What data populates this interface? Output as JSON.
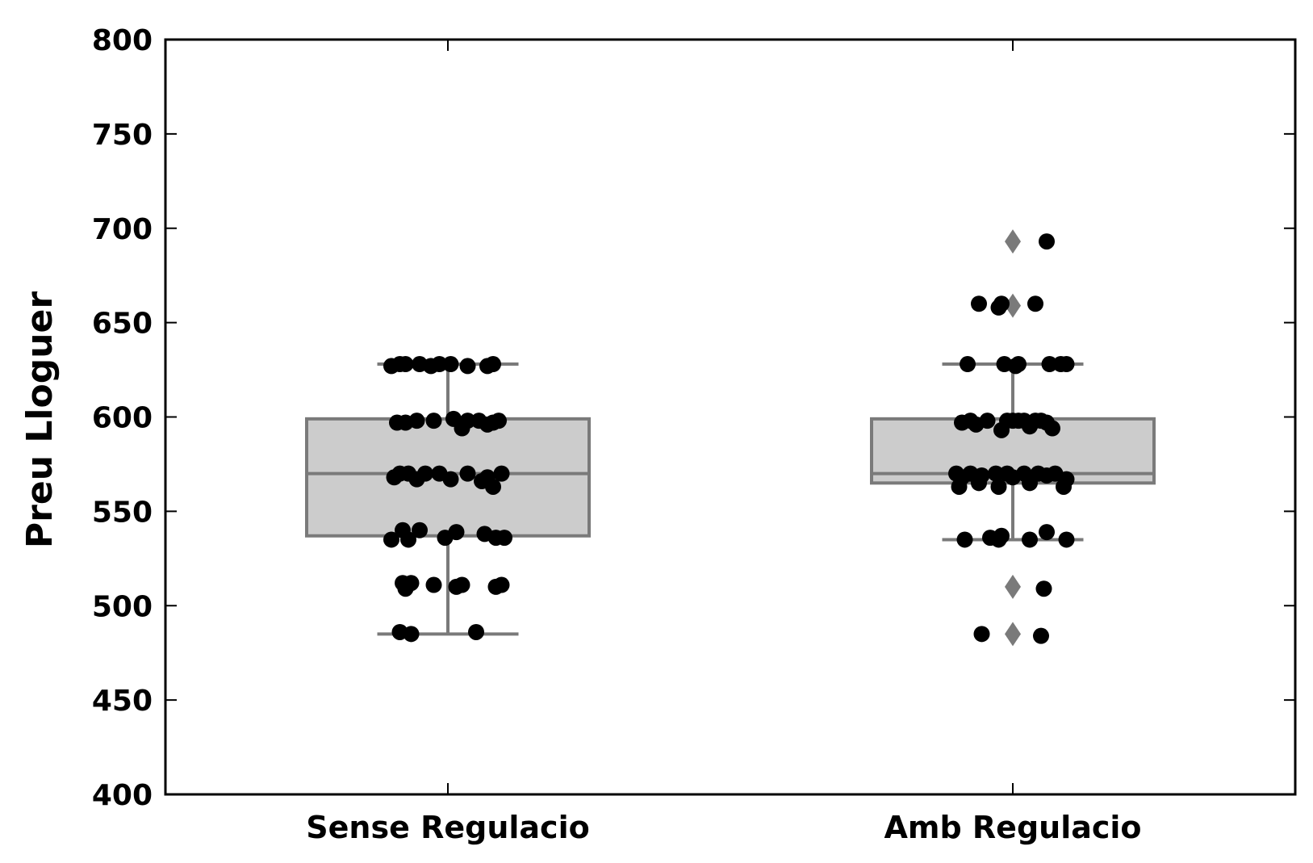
{
  "chart_data": {
    "type": "boxplot",
    "title": "",
    "xlabel": "",
    "ylabel": "Preu Lloguer",
    "ylim": [
      400,
      800
    ],
    "yticks": [
      "400",
      "450",
      "500",
      "550",
      "600",
      "650",
      "700",
      "750",
      "800"
    ],
    "categories": [
      "Sense Regulacio",
      "Amb Regulacio"
    ],
    "grid": false,
    "colors": {
      "box_fill": "#cccccc",
      "box_edge": "#7a7a7a",
      "points": "#000000",
      "outliers": "#7a7a7a"
    },
    "boxes": [
      {
        "category": "Sense Regulacio",
        "whisker_low": 485,
        "q1": 537,
        "median": 570,
        "q3": 599,
        "whisker_high": 628,
        "outliers": [],
        "points": [
          {
            "j": -0.2,
            "y": 627
          },
          {
            "j": -0.17,
            "y": 628
          },
          {
            "j": -0.15,
            "y": 628
          },
          {
            "j": -0.1,
            "y": 628
          },
          {
            "j": -0.06,
            "y": 627
          },
          {
            "j": -0.03,
            "y": 628
          },
          {
            "j": 0.01,
            "y": 628
          },
          {
            "j": 0.07,
            "y": 627
          },
          {
            "j": 0.14,
            "y": 627
          },
          {
            "j": 0.16,
            "y": 628
          },
          {
            "j": -0.18,
            "y": 597
          },
          {
            "j": -0.15,
            "y": 597
          },
          {
            "j": -0.11,
            "y": 598
          },
          {
            "j": -0.05,
            "y": 598
          },
          {
            "j": 0.02,
            "y": 599
          },
          {
            "j": 0.05,
            "y": 594
          },
          {
            "j": 0.07,
            "y": 598
          },
          {
            "j": 0.11,
            "y": 598
          },
          {
            "j": 0.14,
            "y": 596
          },
          {
            "j": 0.16,
            "y": 597
          },
          {
            "j": 0.18,
            "y": 598
          },
          {
            "j": -0.19,
            "y": 568
          },
          {
            "j": -0.17,
            "y": 570
          },
          {
            "j": -0.14,
            "y": 570
          },
          {
            "j": -0.11,
            "y": 567
          },
          {
            "j": -0.08,
            "y": 570
          },
          {
            "j": -0.03,
            "y": 570
          },
          {
            "j": 0.01,
            "y": 567
          },
          {
            "j": 0.07,
            "y": 570
          },
          {
            "j": 0.12,
            "y": 566
          },
          {
            "j": 0.14,
            "y": 568
          },
          {
            "j": 0.16,
            "y": 563
          },
          {
            "j": 0.19,
            "y": 570
          },
          {
            "j": -0.16,
            "y": 540
          },
          {
            "j": -0.1,
            "y": 540
          },
          {
            "j": -0.01,
            "y": 536
          },
          {
            "j": 0.03,
            "y": 539
          },
          {
            "j": 0.13,
            "y": 538
          },
          {
            "j": 0.17,
            "y": 536
          },
          {
            "j": 0.2,
            "y": 536
          },
          {
            "j": -0.2,
            "y": 535
          },
          {
            "j": -0.14,
            "y": 535
          },
          {
            "j": -0.16,
            "y": 512
          },
          {
            "j": -0.13,
            "y": 512
          },
          {
            "j": -0.15,
            "y": 509
          },
          {
            "j": -0.05,
            "y": 511
          },
          {
            "j": 0.03,
            "y": 510
          },
          {
            "j": 0.05,
            "y": 511
          },
          {
            "j": 0.17,
            "y": 510
          },
          {
            "j": 0.19,
            "y": 511
          },
          {
            "j": -0.17,
            "y": 486
          },
          {
            "j": -0.13,
            "y": 485
          },
          {
            "j": 0.1,
            "y": 486
          }
        ]
      },
      {
        "category": "Amb Regulacio",
        "whisker_low": 535,
        "q1": 565,
        "median": 570,
        "q3": 599,
        "whisker_high": 628,
        "outliers": [
          693,
          659,
          510,
          485
        ],
        "points": [
          {
            "j": 0.12,
            "y": 693
          },
          {
            "j": -0.12,
            "y": 660
          },
          {
            "j": -0.05,
            "y": 658
          },
          {
            "j": -0.04,
            "y": 660
          },
          {
            "j": 0.08,
            "y": 660
          },
          {
            "j": -0.16,
            "y": 628
          },
          {
            "j": -0.03,
            "y": 628
          },
          {
            "j": 0.01,
            "y": 627
          },
          {
            "j": 0.02,
            "y": 628
          },
          {
            "j": 0.13,
            "y": 628
          },
          {
            "j": 0.17,
            "y": 628
          },
          {
            "j": 0.19,
            "y": 628
          },
          {
            "j": -0.18,
            "y": 597
          },
          {
            "j": -0.15,
            "y": 598
          },
          {
            "j": -0.13,
            "y": 596
          },
          {
            "j": -0.09,
            "y": 598
          },
          {
            "j": -0.04,
            "y": 593
          },
          {
            "j": -0.02,
            "y": 598
          },
          {
            "j": 0.0,
            "y": 598
          },
          {
            "j": 0.02,
            "y": 598
          },
          {
            "j": 0.04,
            "y": 598
          },
          {
            "j": 0.06,
            "y": 595
          },
          {
            "j": 0.08,
            "y": 598
          },
          {
            "j": 0.1,
            "y": 598
          },
          {
            "j": 0.12,
            "y": 597
          },
          {
            "j": 0.14,
            "y": 594
          },
          {
            "j": -0.2,
            "y": 570
          },
          {
            "j": -0.18,
            "y": 568
          },
          {
            "j": -0.15,
            "y": 570
          },
          {
            "j": -0.11,
            "y": 569
          },
          {
            "j": -0.06,
            "y": 570
          },
          {
            "j": -0.02,
            "y": 570
          },
          {
            "j": 0.0,
            "y": 568
          },
          {
            "j": 0.04,
            "y": 570
          },
          {
            "j": 0.09,
            "y": 570
          },
          {
            "j": 0.12,
            "y": 569
          },
          {
            "j": 0.15,
            "y": 570
          },
          {
            "j": 0.19,
            "y": 567
          },
          {
            "j": -0.19,
            "y": 563
          },
          {
            "j": -0.12,
            "y": 565
          },
          {
            "j": -0.05,
            "y": 563
          },
          {
            "j": 0.06,
            "y": 565
          },
          {
            "j": 0.18,
            "y": 563
          },
          {
            "j": -0.17,
            "y": 535
          },
          {
            "j": -0.08,
            "y": 536
          },
          {
            "j": -0.05,
            "y": 535
          },
          {
            "j": -0.04,
            "y": 537
          },
          {
            "j": 0.06,
            "y": 535
          },
          {
            "j": 0.12,
            "y": 539
          },
          {
            "j": 0.19,
            "y": 535
          },
          {
            "j": 0.11,
            "y": 509
          },
          {
            "j": -0.11,
            "y": 485
          },
          {
            "j": 0.1,
            "y": 484
          }
        ]
      }
    ]
  }
}
